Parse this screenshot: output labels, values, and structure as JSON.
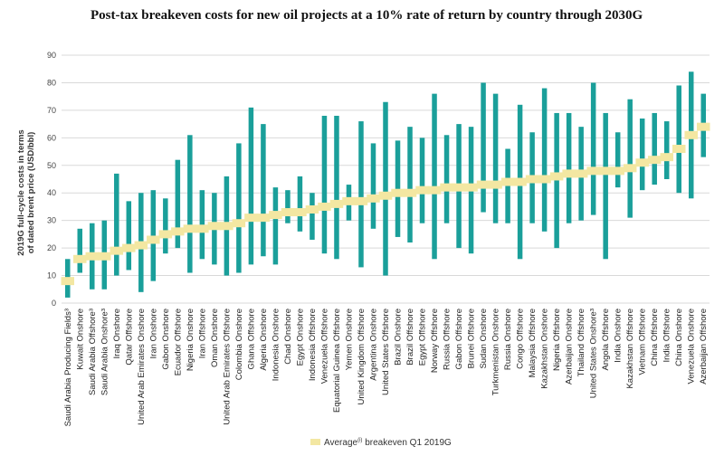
{
  "chart_data": {
    "type": "bar",
    "subtype": "floating-range-with-average-marker",
    "title": "Post-tax breakeven costs for new oil projects at a 10% rate of return by country through 2030G",
    "ylabel_line1": "2019G full-cycle costs in terms",
    "ylabel_line2": "of dated brent price (USD/bbl)",
    "xlabel": "",
    "ylim": [
      0,
      90
    ],
    "yticks": [
      0,
      10,
      20,
      30,
      40,
      50,
      60,
      70,
      80,
      90
    ],
    "grid": true,
    "colors": {
      "bar": "#1a9f9a",
      "marker": "#f3e7a2",
      "grid": "#d9d9d9"
    },
    "legend": {
      "label": "Average",
      "sup": "(i)",
      "rest": " breakeven Q1 2019G",
      "position": "bottom-center"
    },
    "categories": [
      "Saudi Arabia  Producing Fields³",
      "Kuwait Onshore",
      "Saudi Arabia Offshore³",
      "Saudi Arabia Onshore³",
      "Iraq Onshore",
      "Qatar Offshore",
      "United Arab Emirates Onshore",
      "Iran Onshore",
      "Gabon Onshore",
      "Ecuador Offshore",
      "Nigeria Onshore",
      "Iran Offshore",
      "Oman Onshore",
      "United Arab Emirates Offshore",
      "Colombia Onshore",
      "Ghana Offshore",
      "Algeria Onshore",
      "Indonesia Onshore",
      "Chad Onshore",
      "Egypt Onshore",
      "Indonesia Offshore",
      "Venezuela Offshore",
      "Equatorial Guinea Offshore",
      "Yemen Onshore",
      "United Kingdom Offshore",
      "Argentina Onshore",
      "United States Offshore",
      "Brazil Onshore",
      "Brazil Offshore",
      "Egypt Offshore",
      "Norway Offshore",
      "Russia Offshore",
      "Gabon Offshore",
      "Brunei Offshore",
      "Sudan Onshore",
      "Turkmenistan Onshore",
      "Russia Onshore",
      "Congo Offshore",
      "Malaysia Offshore",
      "Kazakhstan Onshore",
      "Nigeria Offshore",
      "Azerbaijan Onshore",
      "Thailand Offshore",
      "United States Onshore³",
      "Angola Offshore",
      "India Onshore",
      "Kazakhstan Offshore",
      "Vietnam Offshore",
      "China Offshore",
      "India Offshore",
      "China Onshore",
      "Venezuela Onshore",
      "Azerbaijan Offshore"
    ],
    "low": [
      2,
      11,
      5,
      5,
      10,
      12,
      4,
      8,
      18,
      20,
      11,
      16,
      14,
      10,
      11,
      14,
      17,
      14,
      29,
      26,
      23,
      18,
      16,
      30,
      13,
      27,
      10,
      24,
      22,
      29,
      16,
      29,
      20,
      18,
      33,
      29,
      29,
      16,
      29,
      26,
      20,
      29,
      30,
      32,
      16,
      42,
      31,
      41,
      43,
      45,
      40,
      38,
      53
    ],
    "high": [
      16,
      27,
      29,
      30,
      47,
      37,
      40,
      41,
      38,
      52,
      61,
      41,
      40,
      46,
      58,
      71,
      65,
      42,
      41,
      46,
      40,
      68,
      68,
      43,
      66,
      58,
      73,
      59,
      64,
      60,
      76,
      61,
      65,
      64,
      80,
      76,
      56,
      72,
      62,
      78,
      69,
      69,
      64,
      80,
      69,
      62,
      74,
      67,
      69,
      66,
      79,
      84,
      76
    ],
    "average": [
      8,
      16,
      17,
      17,
      19,
      20,
      21,
      23,
      25,
      26,
      27,
      27,
      28,
      28,
      29,
      31,
      31,
      32,
      33,
      33,
      34,
      35,
      36,
      37,
      37,
      38,
      39,
      40,
      40,
      41,
      41,
      42,
      42,
      42,
      43,
      43,
      44,
      44,
      45,
      45,
      46,
      47,
      47,
      48,
      48,
      48,
      49,
      51,
      52,
      53,
      56,
      61,
      64
    ]
  }
}
